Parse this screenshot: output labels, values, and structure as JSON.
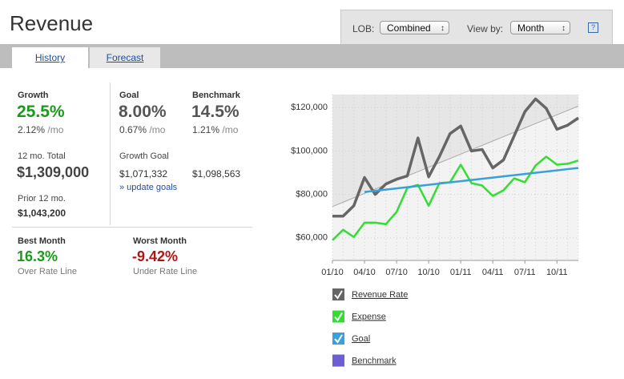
{
  "header": {
    "title": "Revenue",
    "lob_label": "LOB:",
    "lob_value": "Combined",
    "view_label": "View by:",
    "view_value": "Month",
    "help": "?"
  },
  "tabs": [
    "History",
    "Forecast"
  ],
  "stats": {
    "growth": {
      "label": "Growth",
      "value": "25.5%",
      "rate": "2.12%",
      "unit": "/mo"
    },
    "goal": {
      "label": "Goal",
      "value": "8.00%",
      "rate": "0.67%",
      "unit": "/mo"
    },
    "benchmark": {
      "label": "Benchmark",
      "value": "14.5%",
      "rate": "1.21%",
      "unit": "/mo"
    },
    "total": {
      "label": "12 mo. Total",
      "value": "$1,309,000"
    },
    "growth_goal": {
      "label": "Growth Goal",
      "goal_value": "$1,071,332",
      "benchmark_value": "$1,098,563",
      "link": "» update goals"
    },
    "prior": {
      "label": "Prior 12 mo.",
      "value": "$1,043,200"
    },
    "best": {
      "label": "Best Month",
      "value": "16.3%",
      "note": "Over Rate Line"
    },
    "worst": {
      "label": "Worst Month",
      "value": "-9.42%",
      "note": "Under Rate Line"
    }
  },
  "chart_data": {
    "type": "line",
    "categories": [
      "01/10",
      null,
      null,
      "04/10",
      null,
      null,
      "07/10",
      null,
      null,
      "10/10",
      null,
      null,
      "01/11",
      null,
      null,
      "04/11",
      null,
      null,
      "07/11",
      null,
      null,
      "10/11",
      null,
      null
    ],
    "ylim": [
      49600,
      126000
    ],
    "yticks": [
      {
        "value": 60000,
        "label": "$60,000"
      },
      {
        "value": 80000,
        "label": "$80,000"
      },
      {
        "value": 100000,
        "label": "$100,000"
      },
      {
        "value": 120000,
        "label": "$120,000"
      }
    ],
    "grid": true,
    "series": [
      {
        "name": "Revenue Rate",
        "color": "#666666",
        "checked": true,
        "values": [
          70000,
          70000,
          74800,
          87800,
          80000,
          84800,
          87000,
          88500,
          106000,
          88100,
          97400,
          108000,
          111500,
          100000,
          100700,
          92200,
          95900,
          107000,
          118100,
          124000,
          119600,
          110000,
          111900,
          115200
        ]
      },
      {
        "name": "Expense",
        "color": "#33dd33",
        "checked": true,
        "values": [
          58900,
          63700,
          60400,
          67000,
          67000,
          66300,
          71900,
          83000,
          84400,
          74800,
          85200,
          85600,
          93700,
          85200,
          84100,
          79300,
          81900,
          87400,
          85600,
          93300,
          97400,
          93700,
          94100,
          95600
        ]
      },
      {
        "name": "Goal",
        "color": "#3aa0d8",
        "checked": true,
        "values": [
          null,
          null,
          null,
          81100,
          81660,
          82210,
          82770,
          83320,
          83880,
          84430,
          84990,
          85540,
          86100,
          86650,
          87210,
          87760,
          88320,
          88870,
          89430,
          89980,
          90540,
          91090,
          91650,
          92200
        ]
      },
      {
        "name": "Benchmark",
        "color": "#6b5fd3",
        "checked": false,
        "values": [
          null,
          null,
          null,
          null,
          null,
          null,
          null,
          null,
          null,
          null,
          null,
          null,
          null,
          null,
          null,
          null,
          null,
          null,
          null,
          null,
          null,
          null,
          null,
          null
        ]
      },
      {
        "color": "#aaaaaa",
        "values": [
          74400,
          76410,
          78430,
          80440,
          82450,
          84470,
          86480,
          88490,
          90500,
          92520,
          94530,
          96540,
          98560,
          100570,
          102580,
          104600,
          106610,
          108620,
          110630,
          112650,
          114660,
          116670,
          118690,
          120700
        ]
      }
    ]
  }
}
